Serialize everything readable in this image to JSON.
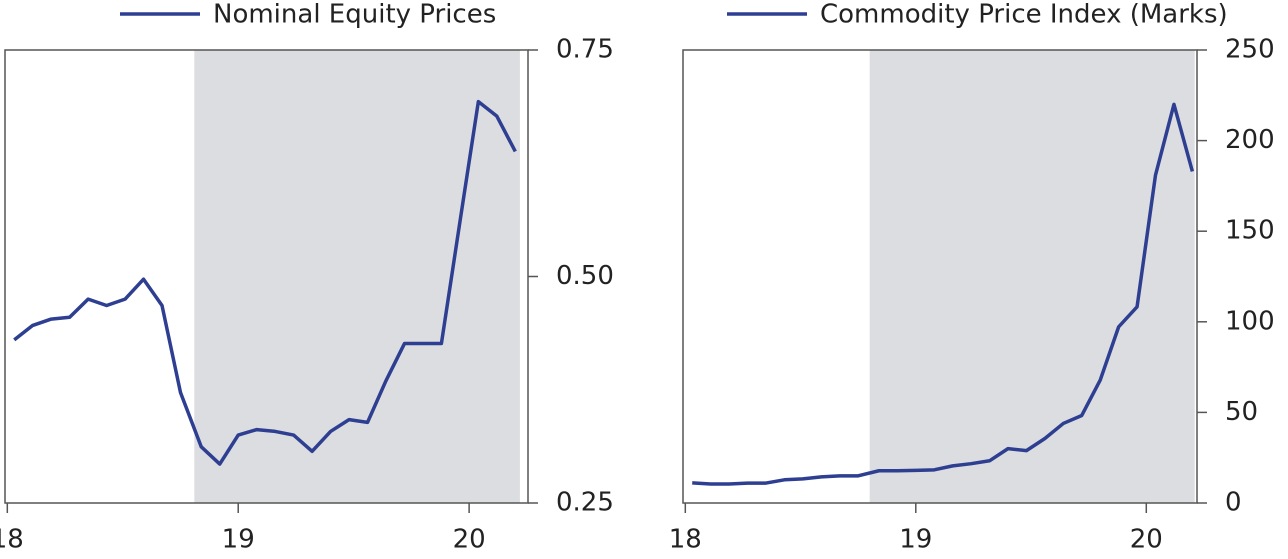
{
  "chart_data": [
    {
      "type": "line",
      "x": [
        18.03,
        18.11,
        18.19,
        18.27,
        18.35,
        18.43,
        18.51,
        18.59,
        18.67,
        18.75,
        18.84,
        18.92,
        19.0,
        19.08,
        19.16,
        19.24,
        19.32,
        19.4,
        19.48,
        19.56,
        19.64,
        19.72,
        19.8,
        19.88,
        19.96,
        20.04,
        20.12,
        20.2
      ],
      "series": [
        {
          "name": "Nominal Equity Prices",
          "color": "#2e3f92",
          "values": [
            0.43,
            0.446,
            0.453,
            0.455,
            0.475,
            0.468,
            0.475,
            0.497,
            0.468,
            0.372,
            0.312,
            0.293,
            0.325,
            0.331,
            0.329,
            0.325,
            0.307,
            0.329,
            0.342,
            0.339,
            0.385,
            0.426,
            0.426,
            0.426,
            0.56,
            0.693,
            0.677,
            0.638
          ]
        }
      ],
      "xlim": [
        17.99,
        20.255
      ],
      "xticks": [
        18,
        19,
        20
      ],
      "ylim": [
        0.25,
        0.75
      ],
      "yticks": [
        0.25,
        {
          "value": 0.5,
          "label": "0.50"
        },
        0.75
      ],
      "shaded_region": [
        18.81,
        20.22
      ],
      "shade_color": "#dcdde0"
    },
    {
      "type": "line",
      "x": [
        18.03,
        18.11,
        18.19,
        18.27,
        18.35,
        18.43,
        18.51,
        18.59,
        18.67,
        18.75,
        18.84,
        18.92,
        19.0,
        19.08,
        19.16,
        19.24,
        19.32,
        19.4,
        19.48,
        19.56,
        19.64,
        19.72,
        19.8,
        19.88,
        19.96,
        20.04,
        20.12,
        20.2
      ],
      "series": [
        {
          "name": "Commodity Price Index (Marks)",
          "color": "#2e3f92",
          "values": [
            11.1,
            10.5,
            10.5,
            11,
            11,
            12.8,
            13.3,
            14.4,
            15,
            15,
            17.8,
            17.8,
            18,
            18.3,
            20.5,
            21.7,
            23.3,
            30,
            28.9,
            35.6,
            43.9,
            48.3,
            67.8,
            97.2,
            108.3,
            181,
            220,
            183
          ]
        }
      ],
      "xlim": [
        17.99,
        20.22
      ],
      "xticks": [
        18,
        19,
        20
      ],
      "ylim": [
        0,
        250
      ],
      "yticks": [
        0,
        50,
        100,
        150,
        200,
        250
      ],
      "shaded_region": [
        18.8,
        20.21
      ],
      "shade_color": "#dcdde0"
    }
  ]
}
